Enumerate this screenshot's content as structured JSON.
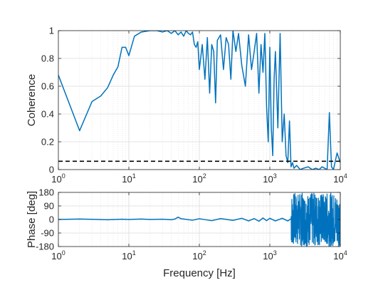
{
  "colors": {
    "series": "#0072BD",
    "threshold": "#000000",
    "grid": "#DADADA",
    "axis": "#262626"
  },
  "chart_data": [
    {
      "type": "line",
      "xscale": "log",
      "xlim": [
        1,
        10000
      ],
      "ylim": [
        0,
        1
      ],
      "xlabel": "",
      "ylabel": "Coherence",
      "grid": true,
      "x_ticks": [
        {
          "value": 1,
          "base": "10",
          "exp": "0"
        },
        {
          "value": 10,
          "base": "10",
          "exp": "1"
        },
        {
          "value": 100,
          "base": "10",
          "exp": "2"
        },
        {
          "value": 1000,
          "base": "10",
          "exp": "3"
        },
        {
          "value": 10000,
          "base": "10",
          "exp": "4"
        }
      ],
      "y_ticks": [
        {
          "value": 0,
          "label": "0"
        },
        {
          "value": 0.2,
          "label": "0.2"
        },
        {
          "value": 0.4,
          "label": "0.4"
        },
        {
          "value": 0.6,
          "label": "0.6"
        },
        {
          "value": 0.8,
          "label": "0.8"
        },
        {
          "value": 1,
          "label": "1"
        }
      ],
      "series": [
        {
          "x": [
            1,
            2,
            3,
            4,
            5,
            6,
            7,
            8,
            9,
            10,
            12,
            15,
            20,
            25,
            30,
            35,
            40,
            45,
            50,
            55,
            60,
            65,
            70,
            75,
            80,
            85,
            90,
            95,
            100,
            110,
            120,
            130,
            140,
            150,
            160,
            170,
            180,
            200,
            220,
            240,
            260,
            280,
            300,
            330,
            360,
            400,
            450,
            500,
            550,
            600,
            650,
            700,
            750,
            800,
            850,
            900,
            950,
            1000,
            1050,
            1100,
            1150,
            1200,
            1300,
            1400,
            1500,
            1600,
            1700,
            1800,
            1900,
            2000,
            2100,
            2200,
            2400,
            2700,
            3000,
            3500,
            4000,
            4500,
            5000,
            5500,
            6000,
            6500,
            7000,
            7500,
            8000,
            9000,
            10000
          ],
          "y": [
            0.68,
            0.28,
            0.49,
            0.53,
            0.59,
            0.68,
            0.74,
            0.88,
            0.88,
            0.82,
            0.96,
            0.99,
            1.0,
            1.0,
            0.99,
            1.0,
            0.98,
            1.0,
            0.97,
            0.99,
            0.96,
            1.0,
            0.98,
            0.97,
            0.99,
            0.9,
            0.88,
            0.92,
            0.72,
            0.9,
            0.65,
            0.95,
            0.55,
            0.9,
            0.85,
            0.48,
            0.93,
            0.97,
            0.72,
            0.95,
            0.9,
            0.65,
            1.0,
            0.85,
            0.98,
            0.75,
            0.6,
            0.97,
            0.72,
            0.85,
            0.98,
            0.55,
            0.9,
            0.7,
            0.98,
            0.45,
            0.2,
            0.88,
            0.3,
            0.1,
            0.65,
            0.85,
            0.3,
            0.98,
            0.2,
            0.4,
            0.1,
            0.05,
            0.35,
            0.02,
            0.05,
            0.01,
            0.03,
            0.0,
            0.01,
            0.02,
            0.0,
            0.01,
            0.0,
            0.02,
            0.01,
            0.0,
            0.41,
            0.02,
            0.0,
            0.12,
            0.05
          ]
        },
        {
          "style": "dashed",
          "x": [
            1,
            10000
          ],
          "y": [
            0.06,
            0.06
          ]
        }
      ]
    },
    {
      "type": "line",
      "xscale": "log",
      "xlim": [
        1,
        10000
      ],
      "ylim": [
        -180,
        180
      ],
      "xlabel": "Frequency [Hz]",
      "ylabel": "Phase [deg]",
      "grid": true,
      "x_ticks": [
        {
          "value": 1,
          "base": "10",
          "exp": "0"
        },
        {
          "value": 10,
          "base": "10",
          "exp": "1"
        },
        {
          "value": 100,
          "base": "10",
          "exp": "2"
        },
        {
          "value": 1000,
          "base": "10",
          "exp": "3"
        },
        {
          "value": 10000,
          "base": "10",
          "exp": "4"
        }
      ],
      "y_ticks": [
        {
          "value": -180,
          "label": "-180"
        },
        {
          "value": -90,
          "label": "-90"
        },
        {
          "value": 0,
          "label": "0"
        },
        {
          "value": 90,
          "label": "90"
        },
        {
          "value": 180,
          "label": "180"
        }
      ],
      "series": [
        {
          "x": [
            1,
            2,
            3,
            5,
            8,
            10,
            15,
            20,
            30,
            40,
            45,
            50,
            55,
            60,
            80,
            100,
            150,
            200,
            300,
            400,
            500,
            600,
            700,
            800,
            900,
            1000,
            1200,
            1500,
            1800,
            2000
          ],
          "y": [
            0,
            3,
            1,
            -2,
            2,
            0,
            3,
            0,
            2,
            -2,
            3,
            15,
            5,
            3,
            -5,
            5,
            -8,
            6,
            -6,
            8,
            -10,
            6,
            -12,
            10,
            -8,
            8,
            -10,
            8,
            -10,
            5
          ]
        },
        {
          "style": "noise",
          "x": [
            2000,
            10000
          ],
          "y": [
            -180,
            180
          ]
        }
      ]
    }
  ]
}
